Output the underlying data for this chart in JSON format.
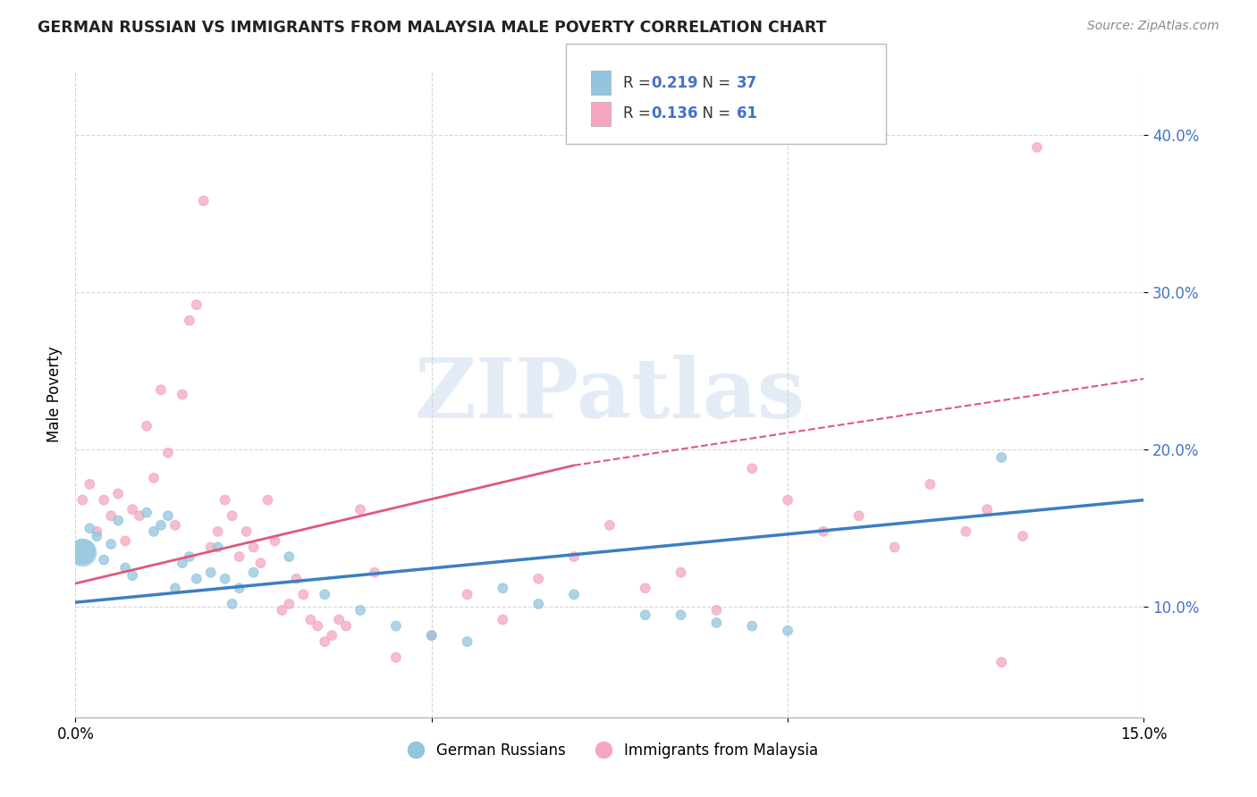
{
  "title": "GERMAN RUSSIAN VS IMMIGRANTS FROM MALAYSIA MALE POVERTY CORRELATION CHART",
  "source": "Source: ZipAtlas.com",
  "ylabel": "Male Poverty",
  "y_ticks": [
    0.1,
    0.2,
    0.3,
    0.4
  ],
  "y_tick_labels": [
    "10.0%",
    "20.0%",
    "30.0%",
    "40.0%"
  ],
  "xlim": [
    0.0,
    0.15
  ],
  "ylim": [
    0.03,
    0.44
  ],
  "blue_color": "#92c5de",
  "pink_color": "#f4a6c0",
  "blue_line_color": "#3a7fc1",
  "pink_line_color": "#e05878",
  "tick_label_color": "#4472c4",
  "watermark": "ZIPatlas",
  "gr_R": "0.219",
  "gr_N": "37",
  "mal_R": "0.136",
  "mal_N": "61",
  "german_russian_x": [
    0.001,
    0.002,
    0.003,
    0.004,
    0.005,
    0.006,
    0.007,
    0.008,
    0.01,
    0.011,
    0.012,
    0.013,
    0.014,
    0.015,
    0.016,
    0.017,
    0.019,
    0.02,
    0.021,
    0.022,
    0.023,
    0.025,
    0.03,
    0.035,
    0.04,
    0.045,
    0.05,
    0.055,
    0.06,
    0.065,
    0.07,
    0.08,
    0.085,
    0.09,
    0.095,
    0.1,
    0.13
  ],
  "german_russian_y": [
    0.135,
    0.15,
    0.145,
    0.13,
    0.14,
    0.155,
    0.125,
    0.12,
    0.16,
    0.148,
    0.152,
    0.158,
    0.112,
    0.128,
    0.132,
    0.118,
    0.122,
    0.138,
    0.118,
    0.102,
    0.112,
    0.122,
    0.132,
    0.108,
    0.098,
    0.088,
    0.082,
    0.078,
    0.112,
    0.102,
    0.108,
    0.095,
    0.095,
    0.09,
    0.088,
    0.085,
    0.195
  ],
  "german_russian_sizes": [
    400,
    60,
    60,
    60,
    60,
    60,
    60,
    60,
    60,
    60,
    60,
    60,
    60,
    60,
    60,
    60,
    60,
    60,
    60,
    60,
    60,
    60,
    60,
    60,
    60,
    60,
    60,
    60,
    60,
    60,
    60,
    60,
    60,
    60,
    60,
    60,
    60
  ],
  "malaysia_x": [
    0.001,
    0.002,
    0.003,
    0.004,
    0.005,
    0.006,
    0.007,
    0.008,
    0.009,
    0.01,
    0.011,
    0.012,
    0.013,
    0.014,
    0.015,
    0.016,
    0.017,
    0.018,
    0.019,
    0.02,
    0.021,
    0.022,
    0.023,
    0.024,
    0.025,
    0.026,
    0.027,
    0.028,
    0.029,
    0.03,
    0.031,
    0.032,
    0.033,
    0.034,
    0.035,
    0.036,
    0.037,
    0.038,
    0.04,
    0.042,
    0.045,
    0.05,
    0.055,
    0.06,
    0.065,
    0.07,
    0.075,
    0.08,
    0.085,
    0.09,
    0.095,
    0.1,
    0.105,
    0.11,
    0.115,
    0.12,
    0.125,
    0.128,
    0.13,
    0.133,
    0.135
  ],
  "malaysia_y": [
    0.168,
    0.178,
    0.148,
    0.168,
    0.158,
    0.172,
    0.142,
    0.162,
    0.158,
    0.215,
    0.182,
    0.238,
    0.198,
    0.152,
    0.235,
    0.282,
    0.292,
    0.358,
    0.138,
    0.148,
    0.168,
    0.158,
    0.132,
    0.148,
    0.138,
    0.128,
    0.168,
    0.142,
    0.098,
    0.102,
    0.118,
    0.108,
    0.092,
    0.088,
    0.078,
    0.082,
    0.092,
    0.088,
    0.162,
    0.122,
    0.068,
    0.082,
    0.108,
    0.092,
    0.118,
    0.132,
    0.152,
    0.112,
    0.122,
    0.098,
    0.188,
    0.168,
    0.148,
    0.158,
    0.138,
    0.178,
    0.148,
    0.162,
    0.065,
    0.145,
    0.392
  ],
  "malaysia_sizes": [
    60,
    60,
    60,
    60,
    60,
    60,
    60,
    60,
    60,
    60,
    60,
    60,
    60,
    60,
    60,
    60,
    60,
    60,
    60,
    60,
    60,
    60,
    60,
    60,
    60,
    60,
    60,
    60,
    60,
    60,
    60,
    60,
    60,
    60,
    60,
    60,
    60,
    60,
    60,
    60,
    60,
    60,
    60,
    60,
    60,
    60,
    60,
    60,
    60,
    60,
    60,
    60,
    60,
    60,
    60,
    60,
    60,
    60,
    60,
    60,
    60
  ],
  "blue_line_x0": 0.0,
  "blue_line_y0": 0.103,
  "blue_line_x1": 0.15,
  "blue_line_y1": 0.168,
  "pink_line_x0": 0.0,
  "pink_line_y0": 0.115,
  "pink_line_x1": 0.07,
  "pink_line_y1": 0.19,
  "pink_line_dash_x0": 0.07,
  "pink_line_dash_y0": 0.19,
  "pink_line_dash_x1": 0.15,
  "pink_line_dash_y1": 0.245
}
